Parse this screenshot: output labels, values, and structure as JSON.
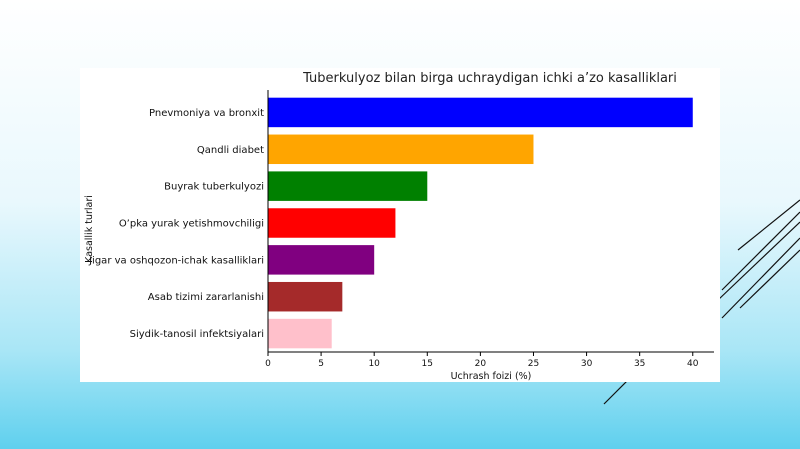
{
  "slide": {
    "accent_colors": [
      "#5fd0ee",
      "#a9e6f6"
    ],
    "decoration": "diagonal-lines"
  },
  "chart_data": {
    "type": "bar",
    "orientation": "horizontal",
    "title": "Tuberkulyoz bilan birga uchraydigan ichki a’zo kasalliklari",
    "xlabel": "Uchrash foizi (%)",
    "ylabel": "Kasallik turlari",
    "categories": [
      "Pnevmoniya va bronxit",
      "Qandli diabet",
      "Buyrak tuberkulyozi",
      "O’pka yurak yetishmovchiligi",
      "Jigar va oshqozon-ichak kasalliklari",
      "Asab tizimi zararlanishi",
      "Siydik-tanosil infektsiyalari"
    ],
    "values": [
      40,
      25,
      15,
      12,
      10,
      7,
      6
    ],
    "colors": [
      "#0000ff",
      "#ffa500",
      "#008000",
      "#ff0000",
      "#800080",
      "#a52a2a",
      "#ffc0cb"
    ],
    "xlim": [
      0,
      42
    ],
    "xticks": [
      0,
      5,
      10,
      15,
      20,
      25,
      30,
      35,
      40
    ],
    "grid": false,
    "legend": "none"
  }
}
